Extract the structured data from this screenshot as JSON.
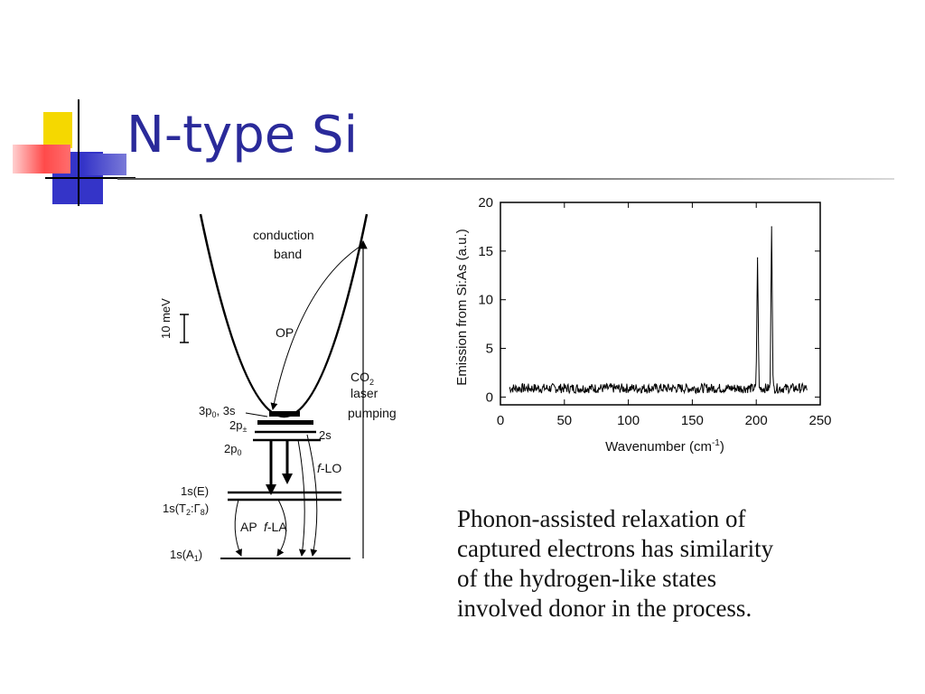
{
  "slide": {
    "title": "N-type Si",
    "caption_lines": [
      "Phonon-assisted relaxation of",
      "captured electrons has similarity",
      "of the hydrogen-like states",
      "involved donor in the process."
    ],
    "accent_colors": {
      "yellow": "#f5d800",
      "red": "#ff3b3b",
      "blue": "#2c2cc8",
      "title": "#2a2a9a"
    }
  },
  "diagram": {
    "conduction_band": "conduction",
    "conduction_band2": "band",
    "scale": "10 meV",
    "op": "OP",
    "co2": "CO",
    "co2_sub": "2",
    "laser": "laser",
    "pumping": "pumping",
    "lvl_3p": "3p",
    "lvl_3p_sub": "0",
    "lvl_3s": ", 3s",
    "lvl_2ppm": "2p",
    "lvl_2ppm_sub": "±",
    "lvl_2s": "2s",
    "lvl_2p0": "2p",
    "lvl_2p0_sub": "0",
    "flo": "-LO",
    "fla": "-LA",
    "f": "f",
    "ap": "AP",
    "s1e": "1s(E)",
    "s1t2a": "1s(T",
    "s1t2b": "2",
    "s1t2c": ":Γ",
    "s1t2d": "8",
    "s1t2e": ")",
    "s1a1a": "1s(A",
    "s1a1b": "1",
    "s1a1c": ")"
  },
  "chart_data": {
    "type": "line",
    "xlabel": "Wavenumber (cm",
    "xlabel_sup": "-1",
    "xlabel_end": ")",
    "ylabel": "Emission from Si:As (a.u.)",
    "xlim": [
      0,
      250
    ],
    "ylim": [
      -0.8,
      20
    ],
    "xticks": [
      "0",
      "50",
      "100",
      "150",
      "200",
      "250"
    ],
    "yticks": [
      "0",
      "5",
      "10",
      "15",
      "20"
    ],
    "xtick_values": [
      0,
      50,
      100,
      150,
      200,
      250
    ],
    "ytick_values": [
      0,
      5,
      10,
      15,
      20
    ],
    "baseline": 0.9,
    "noise_amplitude": 0.5,
    "x_range_data": [
      7,
      240
    ],
    "peaks": [
      {
        "x": 201,
        "y": 14.3
      },
      {
        "x": 212,
        "y": 17.5
      }
    ]
  }
}
